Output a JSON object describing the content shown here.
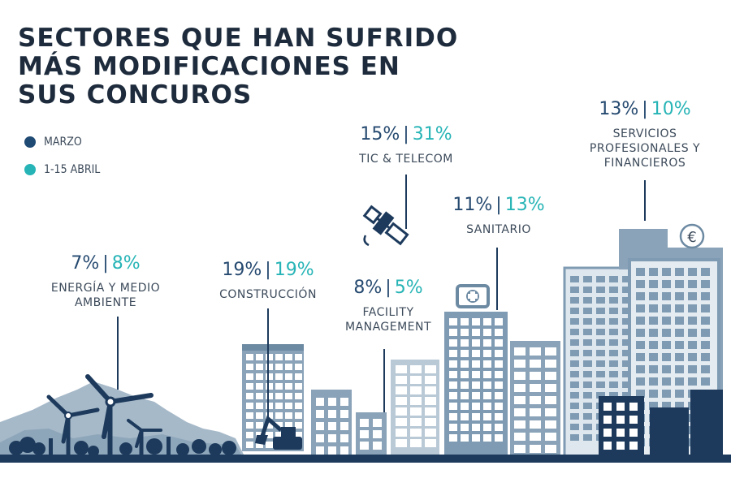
{
  "title": [
    "SECTORES QUE HAN SUFRIDO",
    "MÁS MODIFICACIONES EN",
    "SUS CONCUROS"
  ],
  "colors": {
    "marzo": "#1f4a73",
    "abril": "#27b4b6",
    "text": "#3c4a5a",
    "building": "#7f9bb3",
    "building_dark": "#1d3a5c",
    "ground": "#1d3a5c"
  },
  "chart_data": {
    "type": "table",
    "title": "SECTORES QUE HAN SUFRIDO MÁS MODIFICACIONES EN SUS CONCUROS",
    "legend": [
      "MARZO",
      "1-15 ABRIL"
    ],
    "series": [
      {
        "name": "MARZO",
        "values": [
          7,
          19,
          8,
          15,
          11,
          13
        ]
      },
      {
        "name": "1-15 ABRIL",
        "values": [
          8,
          19,
          5,
          31,
          13,
          10
        ]
      }
    ],
    "categories": [
      "ENERGÍA Y MEDIO AMBIENTE",
      "CONSTRUCCIÓN",
      "FACILITY MANAGEMENT",
      "TIC & TELECOM",
      "SANITARIO",
      "SERVICIOS PROFESIONALES Y FINANCIEROS"
    ],
    "sectors": [
      {
        "id": "energia",
        "name_lines": [
          "ENERGÍA Y MEDIO",
          "AMBIENTE"
        ],
        "marzo": "7%",
        "abril": "8%",
        "sep": "|"
      },
      {
        "id": "construccion",
        "name_lines": [
          "CONSTRUCCIÓN"
        ],
        "marzo": "19%",
        "abril": "19%",
        "sep": "|"
      },
      {
        "id": "facility",
        "name_lines": [
          "FACILITY",
          "MANAGEMENT"
        ],
        "marzo": "8%",
        "abril": "5%",
        "sep": "|"
      },
      {
        "id": "tic",
        "name_lines": [
          "TIC & TELECOM"
        ],
        "marzo": "15%",
        "abril": "31%",
        "sep": "|"
      },
      {
        "id": "sanitario",
        "name_lines": [
          "SANITARIO"
        ],
        "marzo": "11%",
        "abril": "13%",
        "sep": "|"
      },
      {
        "id": "servicios",
        "name_lines": [
          "SERVICIOS",
          "PROFESIONALES Y",
          "FINANCIEROS"
        ],
        "marzo": "13%",
        "abril": "10%",
        "sep": "|"
      }
    ]
  },
  "icons": {
    "euro": "€",
    "hospital": "hospital-cross-icon",
    "satellite": "satellite-icon",
    "excavator": "excavator-icon",
    "wind": "wind-turbine-icon"
  }
}
